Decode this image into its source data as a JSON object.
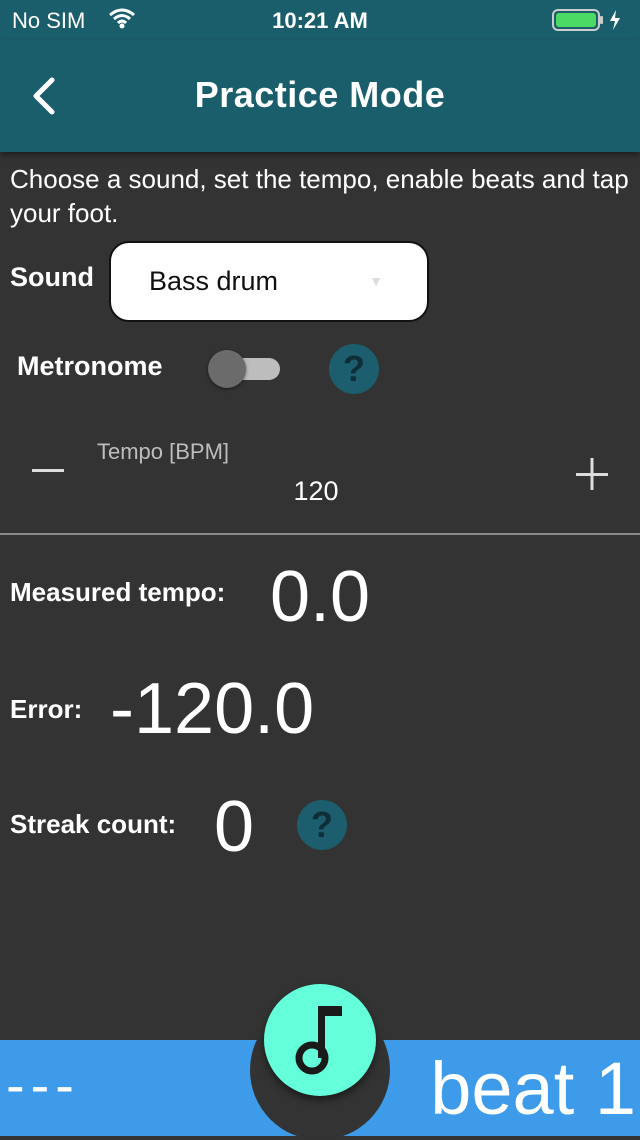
{
  "status_bar": {
    "carrier": "No SIM",
    "time": "10:21 AM"
  },
  "header": {
    "title": "Practice Mode",
    "back_icon": "chevron-left-icon"
  },
  "intro_text": "Choose a sound, set the tempo, enable beats and tap your foot.",
  "sound": {
    "label": "Sound",
    "selected": "Bass drum"
  },
  "metronome": {
    "label": "Metronome",
    "enabled": false,
    "help_icon": "?"
  },
  "tempo": {
    "label": "Tempo [BPM]",
    "value": "120",
    "decrease_icon": "minus-icon",
    "increase_icon": "plus-icon"
  },
  "results": {
    "measured_label": "Measured tempo:",
    "measured_value": "0.0",
    "error_label": "Error:",
    "error_value": "-120.0",
    "streak_label": "Streak count:",
    "streak_value": "0",
    "help_icon": "?"
  },
  "bottom_bar": {
    "left_text": "---",
    "right_text": "beat 1",
    "fab_icon": "music-note-icon"
  },
  "colors": {
    "appbar": "#1b5e6b",
    "background": "#333333",
    "bottom_bar": "#3d9be9",
    "fab": "#64ffda",
    "battery": "#4cd964"
  }
}
